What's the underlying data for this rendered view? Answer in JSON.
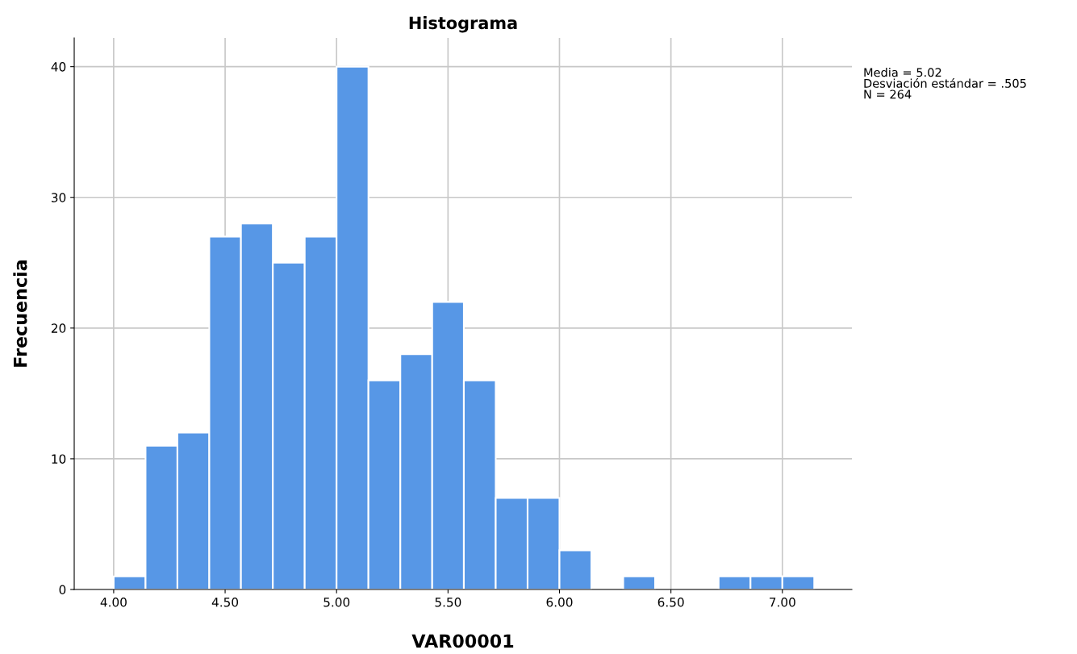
{
  "chart_data": {
    "type": "histogram",
    "title": "Histograma",
    "xlabel": "VAR00001",
    "ylabel": "Frecuencia",
    "bins": [
      4.0,
      4.143,
      4.286,
      4.429,
      4.571,
      4.714,
      4.857,
      5.0,
      5.143,
      5.286,
      5.429,
      5.571,
      5.714,
      5.857,
      6.0,
      6.143,
      6.286,
      6.429,
      6.571,
      6.714,
      6.857,
      7.0,
      7.143
    ],
    "values": [
      1,
      11,
      12,
      27,
      28,
      25,
      27,
      40,
      16,
      18,
      22,
      16,
      7,
      7,
      3,
      0,
      1,
      0,
      0,
      1,
      1,
      1
    ],
    "color": "#5797e6",
    "xlim": [
      3.823,
      7.312
    ],
    "ylim": [
      0,
      42.2
    ],
    "xticks": [
      {
        "value": 4.0,
        "label": "4.00"
      },
      {
        "value": 4.5,
        "label": "4.50"
      },
      {
        "value": 5.0,
        "label": "5.00"
      },
      {
        "value": 5.5,
        "label": "5.50"
      },
      {
        "value": 6.0,
        "label": "6.00"
      },
      {
        "value": 6.5,
        "label": "6.50"
      },
      {
        "value": 7.0,
        "label": "7.00"
      }
    ],
    "yticks": [
      0,
      10,
      20,
      30,
      40
    ],
    "grid": true,
    "annotations": [
      "Media = 5.02\nDesviación estándar = .505\nN = 264"
    ]
  }
}
